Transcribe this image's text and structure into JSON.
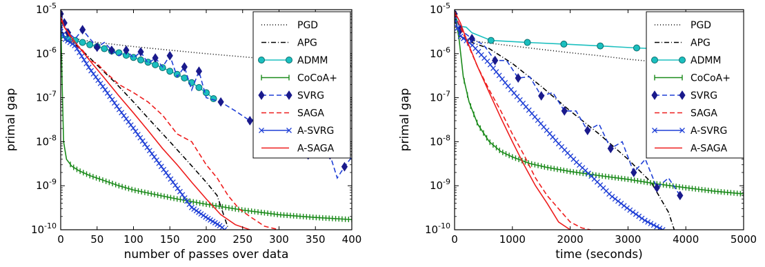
{
  "legend_labels": [
    "PGD",
    "APG",
    "ADMM",
    "CoCoA+",
    "SVRG",
    "SAGA",
    "A-SVRG",
    "A-SAGA"
  ],
  "series_style": {
    "PGD": {
      "color": "#000000",
      "dash": "1,3",
      "marker": "none"
    },
    "APG": {
      "color": "#000000",
      "dash": "7,3,1,3",
      "marker": "none"
    },
    "ADMM": {
      "color": "#1bbfbf",
      "dash": "",
      "marker": "circle"
    },
    "CoCoA+": {
      "color": "#1a8a1a",
      "dash": "",
      "marker": "vtick"
    },
    "SVRG": {
      "color": "#1f3fd6",
      "dash": "7,4",
      "marker": "diamond"
    },
    "SAGA": {
      "color": "#ee1c1c",
      "dash": "7,4",
      "marker": "none"
    },
    "A-SVRG": {
      "color": "#1f3fd6",
      "dash": "",
      "marker": "x"
    },
    "A-SAGA": {
      "color": "#ee1c1c",
      "dash": "",
      "marker": "none"
    }
  },
  "chart_data": [
    {
      "type": "line",
      "xlabel": "number of passes over data",
      "ylabel": "primal gap",
      "xlim": [
        0,
        400
      ],
      "ylim": [
        1e-10,
        1e-05
      ],
      "yscale": "log",
      "xticks": [
        0,
        50,
        100,
        150,
        200,
        250,
        300,
        350,
        400
      ],
      "yticks": [
        1e-10,
        1e-09,
        1e-08,
        1e-07,
        1e-06,
        1e-05
      ],
      "ytick_labels": [
        "10-10",
        "10-9",
        "10-8",
        "10-7",
        "10-6",
        "10-5"
      ],
      "grid": false,
      "legend": "top-right",
      "series": [
        {
          "name": "PGD",
          "x": [
            0,
            5,
            50,
            100,
            150,
            200,
            250,
            300,
            350,
            400
          ],
          "y": [
            4e-06,
            2.4e-06,
            1.8e-06,
            1.45e-06,
            1.2e-06,
            1e-06,
            8.5e-07,
            7.2e-07,
            6.2e-07,
            5.3e-07
          ]
        },
        {
          "name": "APG",
          "x": [
            0,
            5,
            25,
            50,
            75,
            100,
            125,
            150,
            175,
            200,
            215,
            230
          ],
          "y": [
            5e-06,
            2.3e-06,
            1.4e-06,
            5.5e-07,
            2.2e-07,
            8e-08,
            2.8e-08,
            1e-08,
            3.5e-09,
            1.2e-09,
            6e-10,
            1.1e-10
          ]
        },
        {
          "name": "ADMM",
          "x": [
            0,
            10,
            20,
            30,
            40,
            50,
            60,
            70,
            80,
            90,
            100,
            110,
            120,
            130,
            140,
            150,
            160,
            170,
            180,
            190,
            200,
            210
          ],
          "y": [
            2.6e-06,
            2.2e-06,
            2e-06,
            1.8e-06,
            1.6e-06,
            1.45e-06,
            1.3e-06,
            1.15e-06,
            1.05e-06,
            9.2e-07,
            8.2e-07,
            7.2e-07,
            6.4e-07,
            5.6e-07,
            4.8e-07,
            4e-07,
            3.4e-07,
            2.8e-07,
            2.2e-07,
            1.7e-07,
            1.3e-07,
            9.5e-08
          ]
        },
        {
          "name": "CoCoA+",
          "x": [
            0,
            2,
            4,
            8,
            15,
            25,
            40,
            60,
            80,
            100,
            130,
            160,
            200,
            250,
            300,
            350,
            400
          ],
          "y": [
            8e-06,
            2e-07,
            1e-08,
            4e-09,
            2.8e-09,
            2.2e-09,
            1.7e-09,
            1.3e-09,
            1e-09,
            8e-10,
            6.3e-10,
            5e-10,
            3.8e-10,
            2.8e-10,
            2.2e-10,
            1.9e-10,
            1.7e-10
          ]
        },
        {
          "name": "SVRG",
          "x": [
            0,
            5,
            10,
            20,
            30,
            40,
            50,
            60,
            70,
            80,
            90,
            100,
            110,
            120,
            130,
            140,
            150,
            160,
            170,
            180,
            190,
            200,
            220,
            240,
            260,
            280,
            300,
            320,
            340,
            360,
            370,
            380,
            390,
            400
          ],
          "y": [
            8e-06,
            5e-06,
            3e-06,
            2.2e-06,
            3.5e-06,
            2.2e-06,
            1.4e-06,
            1.8e-06,
            1.2e-06,
            9e-07,
            1.2e-06,
            8e-07,
            1.1e-06,
            6e-07,
            8e-07,
            5e-07,
            9e-07,
            3e-07,
            5e-07,
            1.5e-07,
            4e-07,
            1e-07,
            8e-08,
            5e-08,
            3e-08,
            4e-08,
            2e-08,
            1.5e-08,
            5e-09,
            1.5e-08,
            5e-09,
            1.5e-09,
            2.7e-09,
            4.5e-09
          ]
        },
        {
          "name": "SAGA",
          "x": [
            0,
            5,
            10,
            20,
            30,
            40,
            50,
            60,
            80,
            100,
            120,
            140,
            160,
            180,
            200,
            215,
            230,
            245,
            260,
            280,
            300
          ],
          "y": [
            6e-06,
            4e-06,
            3e-06,
            1.5e-06,
            1.2e-06,
            7e-07,
            6e-07,
            4e-07,
            2e-07,
            1.3e-07,
            8e-08,
            4e-08,
            1.5e-08,
            1e-08,
            3e-09,
            1.5e-09,
            6e-10,
            3e-10,
            2e-10,
            1.2e-10,
            1e-10
          ]
        },
        {
          "name": "A-SVRG",
          "x": [
            0,
            5,
            20,
            40,
            60,
            80,
            100,
            120,
            140,
            160,
            180,
            200,
            220,
            225
          ],
          "y": [
            4e-06,
            2.2e-06,
            1.5e-06,
            4.5e-07,
            1.6e-07,
            5.5e-08,
            2e-08,
            7e-09,
            2.5e-09,
            9e-10,
            3.2e-10,
            1.9e-10,
            1.2e-10,
            1e-10
          ]
        },
        {
          "name": "A-SAGA",
          "x": [
            0,
            5,
            20,
            40,
            60,
            80,
            100,
            120,
            140,
            160,
            180,
            200,
            220,
            240,
            260
          ],
          "y": [
            7e-06,
            4e-06,
            1.8e-06,
            7e-07,
            2.8e-07,
            1.1e-07,
            4.5e-08,
            1.8e-08,
            7e-09,
            3e-09,
            1.2e-09,
            5e-10,
            2.2e-10,
            1.3e-10,
            1e-10
          ]
        }
      ]
    },
    {
      "type": "line",
      "xlabel": "time (seconds)",
      "ylabel": "primal gap",
      "xlim": [
        0,
        5000
      ],
      "ylim": [
        1e-10,
        1e-05
      ],
      "yscale": "log",
      "xticks": [
        0,
        1000,
        2000,
        3000,
        4000,
        5000
      ],
      "yticks": [
        1e-10,
        1e-09,
        1e-08,
        1e-07,
        1e-06,
        1e-05
      ],
      "ytick_labels": [
        "10-10",
        "10-9",
        "10-8",
        "10-7",
        "10-6",
        "10-5"
      ],
      "grid": false,
      "legend": "top-right",
      "series": [
        {
          "name": "PGD",
          "x": [
            0,
            100,
            500,
            1000,
            1500,
            2000,
            2500,
            3000,
            3500,
            4000,
            4500,
            5000
          ],
          "y": [
            5e-06,
            2.2e-06,
            1.8e-06,
            1.5e-06,
            1.25e-06,
            1.05e-06,
            9e-07,
            7.5e-07,
            6.5e-07,
            5.5e-07,
            4.8e-07,
            4.2e-07
          ]
        },
        {
          "name": "APG",
          "x": [
            0,
            100,
            300,
            600,
            1000,
            1500,
            2000,
            2500,
            3000,
            3400,
            3700,
            3800
          ],
          "y": [
            6e-06,
            2.5e-06,
            1.8e-06,
            1.3e-06,
            6e-07,
            1.8e-07,
            5e-08,
            1.5e-08,
            4e-09,
            1.2e-09,
            2.5e-10,
            1e-10
          ]
        },
        {
          "name": "ADMM",
          "x": [
            0,
            50,
            100,
            200,
            300,
            630,
            1260,
            1890,
            2520,
            3150,
            3780,
            4410,
            5000
          ],
          "y": [
            8e-06,
            5.5e-06,
            4.2e-06,
            4e-06,
            3e-06,
            2e-06,
            1.8e-06,
            1.65e-06,
            1.5e-06,
            1.35e-06,
            1.25e-06,
            1.12e-06,
            1e-06
          ]
        },
        {
          "name": "CoCoA+",
          "x": [
            0,
            80,
            150,
            250,
            400,
            600,
            800,
            1000,
            1300,
            1600,
            2000,
            2500,
            3000,
            3500,
            4000,
            4500,
            5000
          ],
          "y": [
            1e-05,
            2e-06,
            3e-07,
            8e-08,
            2.5e-08,
            1e-08,
            6e-09,
            4.5e-09,
            3.2e-09,
            2.6e-09,
            2.1e-09,
            1.7e-09,
            1.4e-09,
            1.1e-09,
            9e-10,
            7.5e-10,
            6.5e-10
          ]
        },
        {
          "name": "SVRG",
          "x": [
            0,
            100,
            300,
            500,
            700,
            900,
            1100,
            1300,
            1500,
            1700,
            1900,
            2100,
            2300,
            2500,
            2700,
            2900,
            3100,
            3300,
            3500,
            3700,
            3900
          ],
          "y": [
            8e-06,
            3.5e-06,
            2.2e-06,
            1.6e-06,
            7e-07,
            7e-07,
            2.8e-07,
            3e-07,
            1.1e-07,
            1.3e-07,
            5e-08,
            5e-08,
            1.8e-08,
            2.5e-08,
            7e-09,
            1e-08,
            2e-09,
            4e-09,
            9e-10,
            1.5e-09,
            6e-10
          ]
        },
        {
          "name": "SAGA",
          "x": [
            0,
            100,
            200,
            400,
            600,
            800,
            1000,
            1200,
            1400,
            1600,
            1800,
            2000,
            2200,
            2350
          ],
          "y": [
            8e-06,
            4e-06,
            2e-06,
            5e-07,
            1.5e-07,
            5e-08,
            1.5e-08,
            5e-09,
            1.5e-09,
            6e-10,
            3e-10,
            1.5e-10,
            1.1e-10,
            1e-10
          ]
        },
        {
          "name": "A-SVRG",
          "x": [
            0,
            100,
            300,
            600,
            900,
            1200,
            1500,
            1800,
            2100,
            2400,
            2700,
            3000,
            3300,
            3600
          ],
          "y": [
            6e-06,
            2.5e-06,
            1.6e-06,
            6e-07,
            2e-07,
            7e-08,
            2.5e-08,
            9e-09,
            3.5e-09,
            1.5e-09,
            6e-10,
            3e-10,
            1.6e-10,
            1e-10
          ]
        },
        {
          "name": "A-SAGA",
          "x": [
            0,
            100,
            200,
            400,
            600,
            800,
            1000,
            1200,
            1400,
            1600,
            1800,
            2000
          ],
          "y": [
            9e-06,
            5e-06,
            2.2e-06,
            5e-07,
            1.3e-07,
            3.5e-08,
            1e-08,
            3e-09,
            1e-09,
            4e-10,
            1.5e-10,
            1e-10
          ]
        }
      ]
    }
  ]
}
